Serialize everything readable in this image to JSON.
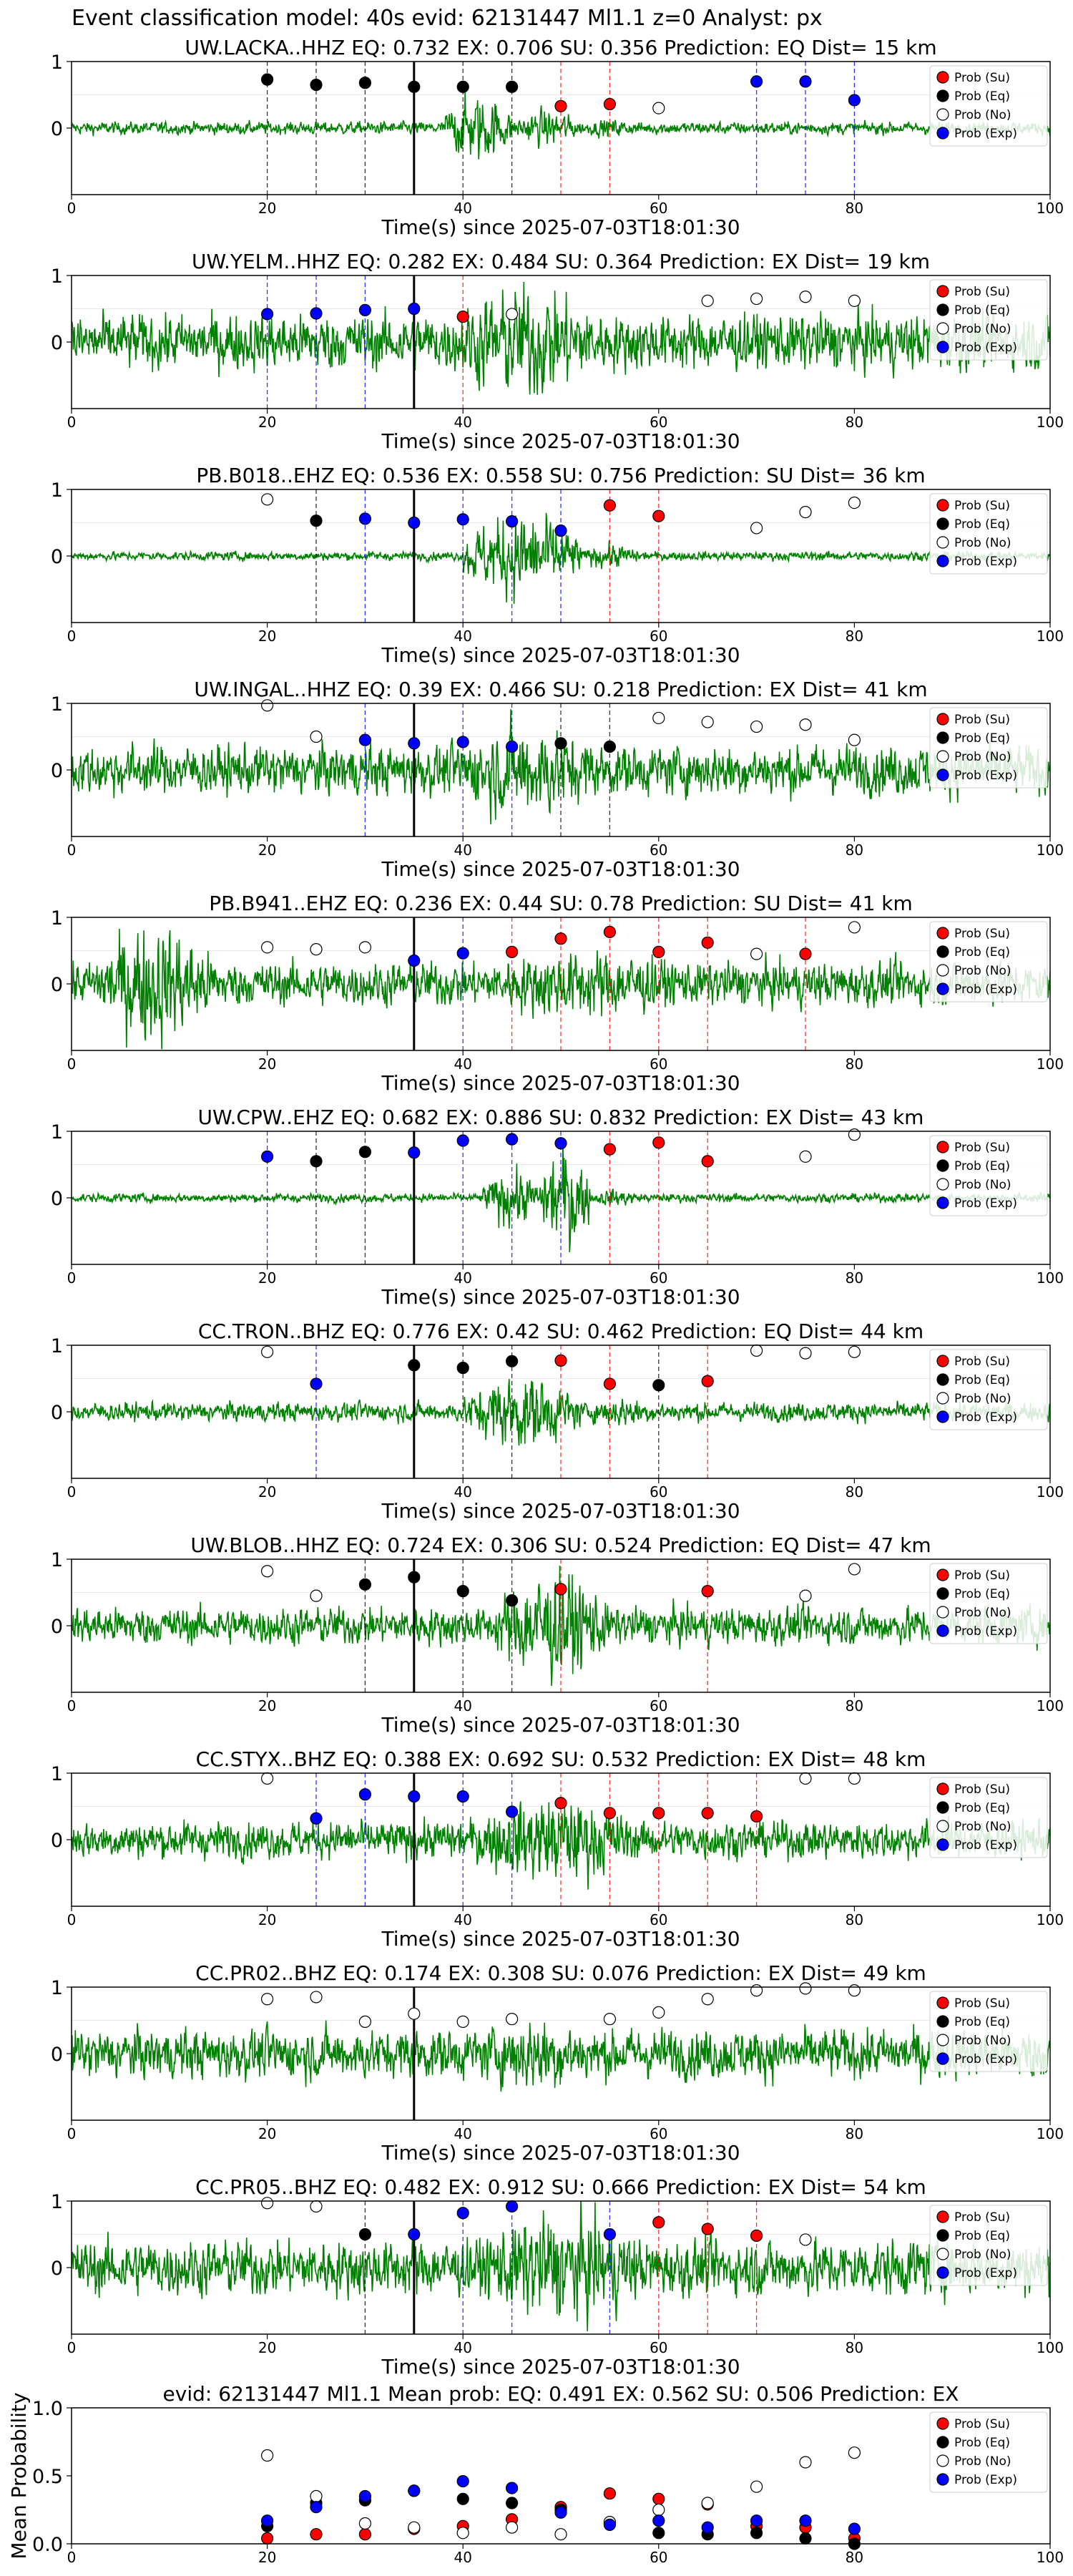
{
  "figure": {
    "title": "Event classification model: 40s evid: 62131447 Ml1.1 z=0 Analyst: px",
    "xlabel": "Time(s) since 2025-07-03T18:01:30",
    "legend": [
      "Prob (Su)",
      "Prob (Eq)",
      "Prob (No)",
      "Prob (Exp)"
    ],
    "colors": {
      "su": "#ff0000",
      "eq": "#000000",
      "no": "#ffffff",
      "exp": "#0000ff",
      "waveform": "#008000"
    }
  },
  "chart_data": [
    {
      "type": "line",
      "title": "UW.LACKA..HHZ   EQ: 0.732  EX: 0.706  SU: 0.356   Prediction: EQ    Dist= 15 km",
      "xlabel": "Time(s) since 2025-07-03T18:01:30",
      "xlim": [
        0,
        100
      ],
      "ylim": [
        -1,
        1
      ],
      "xticks": [
        0,
        20,
        40,
        60,
        80,
        100
      ],
      "yticks": [
        0,
        1
      ],
      "onset": 35,
      "waveform": {
        "amp": 0.1,
        "burst": [
          [
            38,
            45,
            0.55
          ],
          [
            45,
            52,
            0.3
          ],
          [
            52,
            58,
            0.15
          ]
        ]
      },
      "eq": [
        [
          20,
          0.73
        ],
        [
          25,
          0.65
        ],
        [
          30,
          0.68
        ],
        [
          35,
          0.62
        ],
        [
          40,
          0.62
        ],
        [
          45,
          0.62
        ]
      ],
      "su": [
        [
          50,
          0.33
        ],
        [
          55,
          0.36
        ]
      ],
      "no": [
        [
          60,
          0.3
        ]
      ],
      "exp": [
        [
          70,
          0.7
        ],
        [
          75,
          0.7
        ],
        [
          80,
          0.42
        ]
      ]
    },
    {
      "type": "line",
      "title": "UW.YELM..HHZ   EQ: 0.282  EX: 0.484  SU: 0.364   Prediction: EX    Dist= 19 km",
      "xlabel": "Time(s) since 2025-07-03T18:01:30",
      "xlim": [
        0,
        100
      ],
      "ylim": [
        -1,
        1
      ],
      "xticks": [
        0,
        20,
        40,
        60,
        80,
        100
      ],
      "yticks": [
        0,
        1
      ],
      "onset": 35,
      "waveform": {
        "amp": 0.45,
        "burst": [
          [
            38,
            55,
            0.9
          ]
        ]
      },
      "exp": [
        [
          20,
          0.42
        ],
        [
          25,
          0.43
        ],
        [
          30,
          0.48
        ],
        [
          35,
          0.5
        ]
      ],
      "su": [
        [
          40,
          0.38
        ]
      ],
      "no": [
        [
          45,
          0.42
        ],
        [
          65,
          0.62
        ],
        [
          70,
          0.65
        ],
        [
          75,
          0.68
        ],
        [
          80,
          0.62
        ]
      ]
    },
    {
      "type": "line",
      "title": "PB.B018..EHZ   EQ: 0.536  EX: 0.558  SU: 0.756   Prediction: SU    Dist= 36 km",
      "xlabel": "Time(s) since 2025-07-03T18:01:30",
      "xlim": [
        0,
        100
      ],
      "ylim": [
        -1,
        1
      ],
      "xticks": [
        0,
        20,
        40,
        60,
        80,
        100
      ],
      "yticks": [
        0,
        1
      ],
      "onset": 35,
      "waveform": {
        "amp": 0.07,
        "burst": [
          [
            40,
            52,
            0.7
          ],
          [
            52,
            58,
            0.2
          ]
        ]
      },
      "no": [
        [
          20,
          0.85
        ],
        [
          70,
          0.42
        ],
        [
          75,
          0.66
        ],
        [
          80,
          0.8
        ]
      ],
      "eq": [
        [
          25,
          0.53
        ]
      ],
      "exp": [
        [
          30,
          0.56
        ],
        [
          35,
          0.5
        ],
        [
          40,
          0.55
        ],
        [
          45,
          0.52
        ],
        [
          50,
          0.38
        ]
      ],
      "su": [
        [
          55,
          0.76
        ],
        [
          60,
          0.6
        ]
      ]
    },
    {
      "type": "line",
      "title": "UW.INGAL..HHZ   EQ: 0.39  EX: 0.466  SU: 0.218   Prediction: EX    Dist= 41 km",
      "xlabel": "Time(s) since 2025-07-03T18:01:30",
      "xlim": [
        0,
        100
      ],
      "ylim": [
        -1,
        1
      ],
      "xticks": [
        0,
        20,
        40,
        60,
        80,
        100
      ],
      "yticks": [
        0,
        1
      ],
      "onset": 35,
      "waveform": {
        "amp": 0.4,
        "burst": [
          [
            38,
            55,
            0.75
          ]
        ]
      },
      "no": [
        [
          20,
          0.97
        ],
        [
          25,
          0.5
        ],
        [
          60,
          0.78
        ],
        [
          65,
          0.72
        ],
        [
          70,
          0.65
        ],
        [
          75,
          0.68
        ],
        [
          80,
          0.45
        ]
      ],
      "exp": [
        [
          30,
          0.45
        ],
        [
          35,
          0.4
        ],
        [
          40,
          0.42
        ],
        [
          45,
          0.35
        ]
      ],
      "eq": [
        [
          50,
          0.4
        ],
        [
          55,
          0.35
        ]
      ]
    },
    {
      "type": "line",
      "title": "PB.B941..EHZ   EQ: 0.236  EX: 0.44  SU: 0.78   Prediction: SU    Dist= 41 km",
      "xlabel": "Time(s) since 2025-07-03T18:01:30",
      "xlim": [
        0,
        100
      ],
      "ylim": [
        -1,
        1
      ],
      "xticks": [
        0,
        20,
        40,
        60,
        80,
        100
      ],
      "yticks": [
        0,
        1
      ],
      "onset": 35,
      "waveform": {
        "amp": 0.35,
        "burst": [
          [
            2,
            15,
            0.95
          ],
          [
            40,
            65,
            0.55
          ]
        ]
      },
      "no": [
        [
          20,
          0.55
        ],
        [
          25,
          0.52
        ],
        [
          30,
          0.55
        ],
        [
          70,
          0.45
        ],
        [
          80,
          0.85
        ]
      ],
      "exp": [
        [
          35,
          0.35
        ],
        [
          40,
          0.46
        ]
      ],
      "su": [
        [
          45,
          0.48
        ],
        [
          50,
          0.68
        ],
        [
          55,
          0.78
        ],
        [
          60,
          0.48
        ],
        [
          65,
          0.62
        ],
        [
          75,
          0.45
        ]
      ]
    },
    {
      "type": "line",
      "title": "UW.CPW..EHZ   EQ: 0.682  EX: 0.886  SU: 0.832   Prediction: EX    Dist= 43 km",
      "xlabel": "Time(s) since 2025-07-03T18:01:30",
      "xlim": [
        0,
        100
      ],
      "ylim": [
        -1,
        1
      ],
      "xticks": [
        0,
        20,
        40,
        60,
        80,
        100
      ],
      "yticks": [
        0,
        1
      ],
      "onset": 35,
      "waveform": {
        "amp": 0.07,
        "burst": [
          [
            42,
            48,
            0.45
          ],
          [
            48,
            53,
            0.85
          ],
          [
            53,
            58,
            0.15
          ]
        ]
      },
      "exp": [
        [
          20,
          0.62
        ],
        [
          35,
          0.68
        ],
        [
          40,
          0.86
        ],
        [
          45,
          0.88
        ],
        [
          50,
          0.82
        ]
      ],
      "eq": [
        [
          25,
          0.55
        ],
        [
          30,
          0.69
        ]
      ],
      "su": [
        [
          55,
          0.73
        ],
        [
          60,
          0.83
        ],
        [
          65,
          0.55
        ]
      ],
      "no": [
        [
          75,
          0.62
        ],
        [
          80,
          0.95
        ]
      ]
    },
    {
      "type": "line",
      "title": "CC.TRON..BHZ   EQ: 0.776  EX: 0.42  SU: 0.462   Prediction: EQ    Dist= 44 km",
      "xlabel": "Time(s) since 2025-07-03T18:01:30",
      "xlim": [
        0,
        100
      ],
      "ylim": [
        -1,
        1
      ],
      "xticks": [
        0,
        20,
        40,
        60,
        80,
        100
      ],
      "yticks": [
        0,
        1
      ],
      "onset": 35,
      "waveform": {
        "amp": 0.15,
        "burst": [
          [
            40,
            52,
            0.6
          ],
          [
            52,
            60,
            0.25
          ]
        ]
      },
      "no": [
        [
          20,
          0.9
        ],
        [
          70,
          0.92
        ],
        [
          75,
          0.88
        ],
        [
          80,
          0.9
        ]
      ],
      "exp": [
        [
          25,
          0.42
        ]
      ],
      "eq": [
        [
          35,
          0.7
        ],
        [
          40,
          0.66
        ],
        [
          45,
          0.76
        ],
        [
          60,
          0.4
        ]
      ],
      "su": [
        [
          50,
          0.77
        ],
        [
          55,
          0.42
        ],
        [
          65,
          0.46
        ]
      ]
    },
    {
      "type": "line",
      "title": "UW.BLOB..HHZ   EQ: 0.724  EX: 0.306  SU: 0.524   Prediction: EQ    Dist= 47 km",
      "xlabel": "Time(s) since 2025-07-03T18:01:30",
      "xlim": [
        0,
        100
      ],
      "ylim": [
        -1,
        1
      ],
      "xticks": [
        0,
        20,
        40,
        60,
        80,
        100
      ],
      "yticks": [
        0,
        1
      ],
      "onset": 35,
      "waveform": {
        "amp": 0.3,
        "burst": [
          [
            43,
            55,
            0.9
          ]
        ]
      },
      "no": [
        [
          20,
          0.82
        ],
        [
          25,
          0.45
        ],
        [
          75,
          0.45
        ],
        [
          80,
          0.85
        ]
      ],
      "eq": [
        [
          30,
          0.62
        ],
        [
          35,
          0.73
        ],
        [
          40,
          0.52
        ],
        [
          45,
          0.38
        ]
      ],
      "su": [
        [
          50,
          0.55
        ],
        [
          65,
          0.52
        ]
      ]
    },
    {
      "type": "line",
      "title": "CC.STYX..BHZ   EQ: 0.388  EX: 0.692  SU: 0.532   Prediction: EX    Dist= 48 km",
      "xlabel": "Time(s) since 2025-07-03T18:01:30",
      "xlim": [
        0,
        100
      ],
      "ylim": [
        -1,
        1
      ],
      "xticks": [
        0,
        20,
        40,
        60,
        80,
        100
      ],
      "yticks": [
        0,
        1
      ],
      "onset": 35,
      "waveform": {
        "amp": 0.3,
        "burst": [
          [
            40,
            58,
            0.7
          ]
        ]
      },
      "no": [
        [
          20,
          0.92
        ],
        [
          75,
          0.92
        ],
        [
          80,
          0.92
        ]
      ],
      "exp": [
        [
          25,
          0.32
        ],
        [
          30,
          0.68
        ],
        [
          35,
          0.65
        ],
        [
          40,
          0.65
        ],
        [
          45,
          0.42
        ]
      ],
      "su": [
        [
          50,
          0.55
        ],
        [
          55,
          0.4
        ],
        [
          60,
          0.4
        ],
        [
          65,
          0.4
        ],
        [
          70,
          0.35
        ]
      ]
    },
    {
      "type": "line",
      "title": "CC.PR02..BHZ   EQ: 0.174  EX: 0.308  SU: 0.076   Prediction: EX    Dist= 49 km",
      "xlabel": "Time(s) since 2025-07-03T18:01:30",
      "xlim": [
        0,
        100
      ],
      "ylim": [
        -1,
        1
      ],
      "xticks": [
        0,
        20,
        40,
        60,
        80,
        100
      ],
      "yticks": [
        0,
        1
      ],
      "onset": 35,
      "waveform": {
        "amp": 0.4,
        "burst": [
          [
            40,
            55,
            0.6
          ]
        ]
      },
      "no": [
        [
          20,
          0.82
        ],
        [
          25,
          0.85
        ],
        [
          30,
          0.48
        ],
        [
          35,
          0.6
        ],
        [
          40,
          0.48
        ],
        [
          45,
          0.52
        ],
        [
          55,
          0.52
        ],
        [
          60,
          0.62
        ],
        [
          65,
          0.82
        ],
        [
          70,
          0.95
        ],
        [
          75,
          0.98
        ],
        [
          80,
          0.95
        ]
      ]
    },
    {
      "type": "line",
      "title": "CC.PR05..BHZ   EQ: 0.482  EX: 0.912  SU: 0.666   Prediction: EX    Dist= 54 km",
      "xlabel": "Time(s) since 2025-07-03T18:01:30",
      "xlim": [
        0,
        100
      ],
      "ylim": [
        -1,
        1
      ],
      "xticks": [
        0,
        20,
        40,
        60,
        80,
        100
      ],
      "yticks": [
        0,
        1
      ],
      "onset": 35,
      "waveform": {
        "amp": 0.45,
        "burst": [
          [
            40,
            60,
            0.85
          ]
        ]
      },
      "no": [
        [
          20,
          0.97
        ],
        [
          25,
          0.92
        ],
        [
          75,
          0.42
        ]
      ],
      "eq": [
        [
          30,
          0.5
        ]
      ],
      "exp": [
        [
          35,
          0.5
        ],
        [
          40,
          0.82
        ],
        [
          45,
          0.92
        ],
        [
          55,
          0.5
        ]
      ],
      "su": [
        [
          60,
          0.68
        ],
        [
          65,
          0.58
        ],
        [
          70,
          0.48
        ]
      ]
    },
    {
      "type": "scatter",
      "title": "evid: 62131447  Ml1.1    Mean prob:   EQ: 0.491  EX: 0.562  SU: 0.506   Prediction: EX",
      "ylabel": "Mean Probability",
      "xlim": [
        0,
        100
      ],
      "ylim": [
        0,
        1
      ],
      "xticks": [
        0,
        20,
        40,
        60,
        80,
        100
      ],
      "yticks": [
        0.0,
        0.5,
        1.0
      ],
      "yticklabels": [
        "0.0",
        "0.5",
        "1.0"
      ],
      "su": [
        [
          20,
          0.04
        ],
        [
          25,
          0.07
        ],
        [
          30,
          0.07
        ],
        [
          35,
          0.11
        ],
        [
          40,
          0.13
        ],
        [
          45,
          0.18
        ],
        [
          50,
          0.27
        ],
        [
          55,
          0.37
        ],
        [
          60,
          0.33
        ],
        [
          65,
          0.29
        ],
        [
          70,
          0.13
        ],
        [
          75,
          0.12
        ],
        [
          80,
          0.04
        ]
      ],
      "eq": [
        [
          20,
          0.13
        ],
        [
          25,
          0.3
        ],
        [
          30,
          0.32
        ],
        [
          35,
          0.39
        ],
        [
          40,
          0.33
        ],
        [
          45,
          0.3
        ],
        [
          50,
          0.25
        ],
        [
          55,
          0.15
        ],
        [
          60,
          0.08
        ],
        [
          65,
          0.07
        ],
        [
          70,
          0.08
        ],
        [
          75,
          0.04
        ],
        [
          80,
          0.0
        ]
      ],
      "no": [
        [
          20,
          0.65
        ],
        [
          25,
          0.35
        ],
        [
          30,
          0.15
        ],
        [
          35,
          0.12
        ],
        [
          40,
          0.08
        ],
        [
          45,
          0.12
        ],
        [
          50,
          0.07
        ],
        [
          55,
          0.16
        ],
        [
          60,
          0.25
        ],
        [
          65,
          0.3
        ],
        [
          70,
          0.42
        ],
        [
          75,
          0.6
        ],
        [
          80,
          0.67
        ]
      ],
      "exp": [
        [
          20,
          0.17
        ],
        [
          25,
          0.27
        ],
        [
          30,
          0.35
        ],
        [
          35,
          0.39
        ],
        [
          40,
          0.46
        ],
        [
          45,
          0.41
        ],
        [
          50,
          0.23
        ],
        [
          55,
          0.14
        ],
        [
          60,
          0.17
        ],
        [
          65,
          0.12
        ],
        [
          70,
          0.17
        ],
        [
          75,
          0.17
        ],
        [
          80,
          0.11
        ]
      ]
    }
  ]
}
